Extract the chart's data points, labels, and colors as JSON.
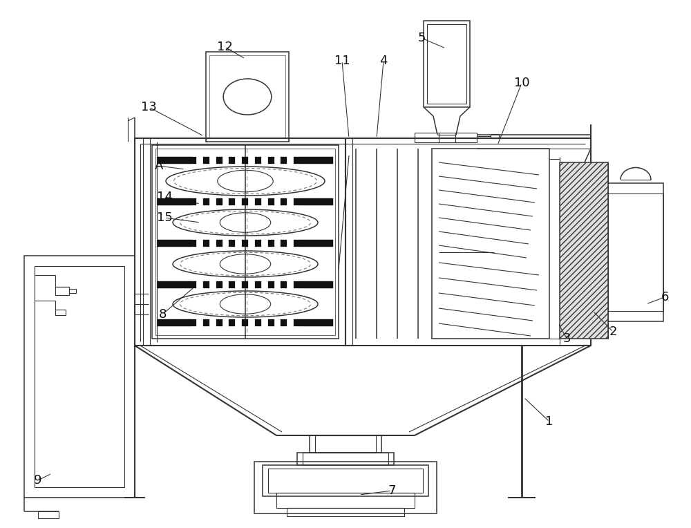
{
  "bg_color": "#ffffff",
  "line_color": "#333333",
  "fig_width": 10.0,
  "fig_height": 7.64,
  "label_fontsize": 13,
  "lw_main": 1.5,
  "lw_thin": 0.8,
  "lw_med": 1.1
}
